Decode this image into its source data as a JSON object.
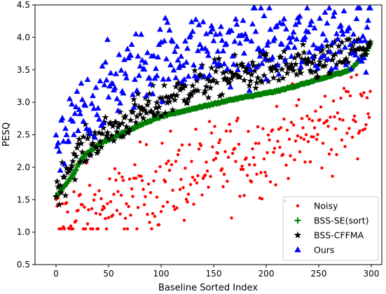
{
  "chart_data": {
    "type": "scatter",
    "title": "",
    "xlabel": "Baseline Sorted Index",
    "ylabel": "PESQ",
    "xlim": [
      -20,
      310
    ],
    "ylim": [
      0.5,
      4.5
    ],
    "xticks": [
      "0",
      "50",
      "100",
      "150",
      "200",
      "250",
      "300"
    ],
    "yticks": [
      "0.5",
      "1.0",
      "1.5",
      "2.0",
      "2.5",
      "3.0",
      "3.5",
      "4.0",
      "4.5"
    ],
    "xtick_values": [
      0,
      50,
      100,
      150,
      200,
      250,
      300
    ],
    "ytick_values": [
      0.5,
      1.0,
      1.5,
      2.0,
      2.5,
      3.0,
      3.5,
      4.0,
      4.5
    ],
    "grid": false,
    "legend_position": "lower-right",
    "n_points_per_series": 300,
    "series": [
      {
        "name": "Noisy",
        "marker": "circle",
        "color": "#ff0000",
        "trend_x": [
          0,
          50,
          100,
          150,
          200,
          250,
          300
        ],
        "trend_y": [
          1.15,
          1.35,
          1.75,
          2.0,
          2.3,
          2.55,
          3.0
        ],
        "spread": 0.35
      },
      {
        "name": "BSS-SE(sort)",
        "marker": "plus",
        "color": "#008000",
        "trend_x": [
          0,
          5,
          15,
          25,
          40,
          60,
          80,
          100,
          130,
          170,
          210,
          250,
          280,
          295,
          300
        ],
        "trend_y": [
          1.55,
          1.65,
          1.85,
          2.15,
          2.35,
          2.5,
          2.65,
          2.78,
          2.9,
          3.05,
          3.17,
          3.35,
          3.5,
          3.75,
          3.95
        ],
        "spread": 0.0
      },
      {
        "name": "BSS-CFFMA",
        "marker": "star",
        "color": "#000000",
        "trend_x": [
          0,
          10,
          20,
          40,
          60,
          80,
          100,
          130,
          160,
          200,
          240,
          270,
          300
        ],
        "trend_y": [
          1.6,
          1.95,
          2.2,
          2.45,
          2.65,
          2.85,
          3.0,
          3.25,
          3.4,
          3.5,
          3.55,
          3.7,
          3.9
        ],
        "spread": 0.14
      },
      {
        "name": "Ours",
        "marker": "triangle",
        "color": "#0000ff",
        "trend_x": [
          0,
          10,
          20,
          40,
          60,
          80,
          100,
          130,
          160,
          200,
          240,
          270,
          300
        ],
        "trend_y": [
          2.1,
          2.4,
          2.75,
          3.1,
          3.35,
          3.55,
          3.7,
          3.8,
          3.85,
          3.9,
          3.95,
          4.05,
          4.2
        ],
        "spread": 0.3
      }
    ]
  }
}
